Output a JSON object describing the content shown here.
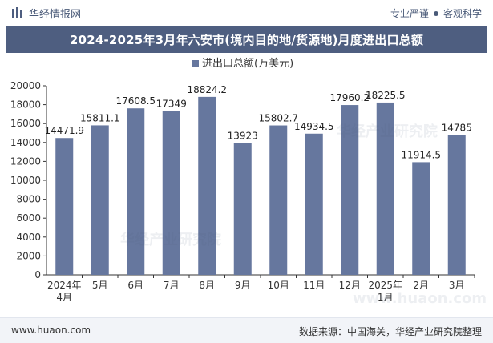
{
  "header": {
    "brand_name": "华经情报网",
    "tags": [
      "专业严谨",
      "客观科学"
    ]
  },
  "title": "2024-2025年3月年六安市(境内目的地/货源地)月度进出口总额",
  "footer": {
    "website": "www.huaon.com",
    "source": "数据来源：中国海关，华经产业研究院整理"
  },
  "watermarks": [
    "华经产业研究院",
    "华经产业研究院",
    "www.huaon.com"
  ],
  "colors": {
    "bar": "#66779e",
    "title_bg": "#4e5e80",
    "axis": "#333333"
  },
  "chart_data": {
    "type": "bar",
    "title": "2024-2025年3月年六安市(境内目的地/货源地)月度进出口总额",
    "legend": "进出口总额(万美元)",
    "legend_position": "top-center",
    "categories": [
      "2024年\n4月",
      "5月",
      "6月",
      "7月",
      "8月",
      "9月",
      "10月",
      "11月",
      "12月",
      "2025年\n1月",
      "2月",
      "3月"
    ],
    "values": [
      14471.9,
      15811.1,
      17608.5,
      17349,
      18824.2,
      13923,
      15802.7,
      14934.5,
      17960.2,
      18225.5,
      11914.5,
      14785
    ],
    "value_labels": [
      "14471.9",
      "15811.1",
      "17608.5",
      "17349",
      "18824.2",
      "13923",
      "15802.7",
      "14934.5",
      "17960.2",
      "18225.5",
      "11914.5",
      "14785"
    ],
    "ylim": [
      0,
      20000
    ],
    "yticks": [
      0,
      2000,
      4000,
      6000,
      8000,
      10000,
      12000,
      14000,
      16000,
      18000,
      20000
    ],
    "xlabel": "",
    "ylabel": "",
    "grid": false
  }
}
